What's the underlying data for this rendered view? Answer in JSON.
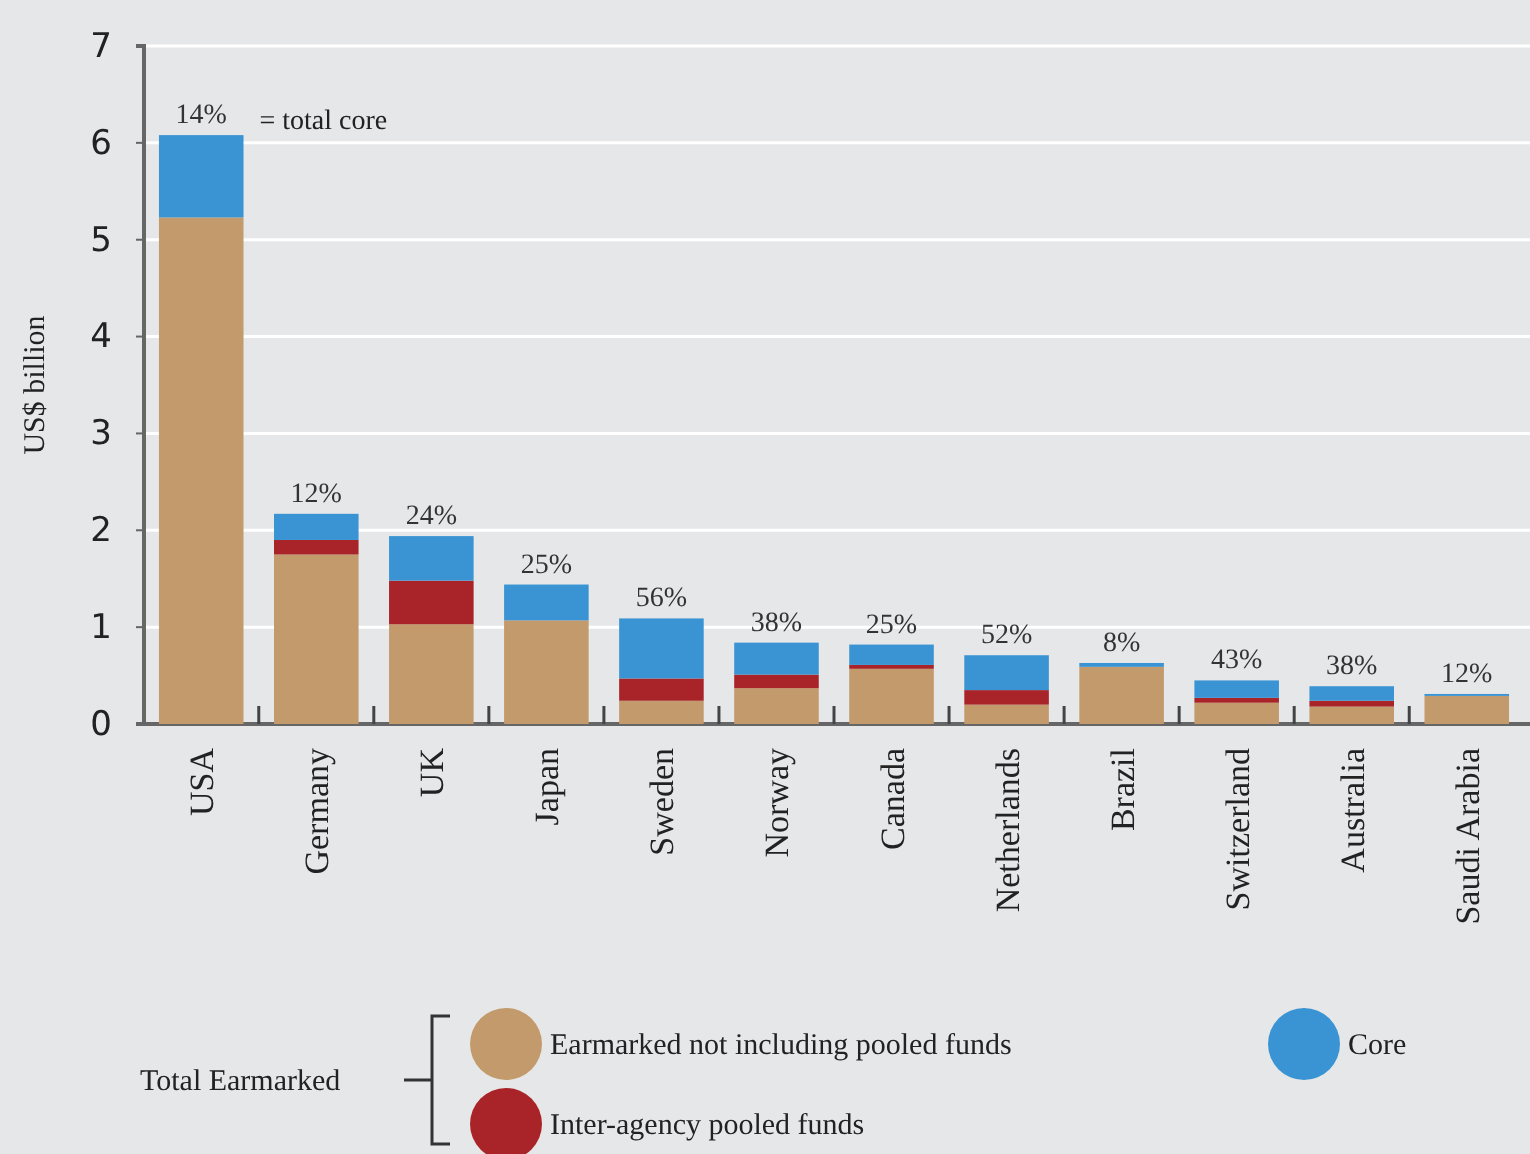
{
  "chart_data": {
    "type": "bar",
    "stacked": true,
    "ylabel": "US$ billion",
    "categories": [
      "USA",
      "Germany",
      "UK",
      "Japan",
      "Sweden",
      "Norway",
      "Canada",
      "Netherlands",
      "Brazil",
      "Switzerland",
      "Australia",
      "Saudi Arabia"
    ],
    "series": [
      {
        "name": "Earmarked not including pooled funds",
        "color": "#c39a6b",
        "values": [
          5.23,
          1.75,
          1.03,
          1.07,
          0.24,
          0.37,
          0.57,
          0.2,
          0.59,
          0.22,
          0.18,
          0.29
        ]
      },
      {
        "name": "Inter-agency pooled funds",
        "color": "#a92428",
        "values": [
          0,
          0.15,
          0.45,
          0,
          0.23,
          0.14,
          0.04,
          0.15,
          0,
          0.05,
          0.06,
          0
        ]
      },
      {
        "name": "Core",
        "color": "#3a94d3",
        "values": [
          0.85,
          0.27,
          0.46,
          0.37,
          0.62,
          0.33,
          0.21,
          0.36,
          0.04,
          0.18,
          0.15,
          0.02
        ]
      }
    ],
    "ylim": [
      0,
      7
    ],
    "yticks": [
      0,
      1,
      2,
      3,
      4,
      5,
      6,
      7
    ],
    "grid": "y",
    "legend": "bottom",
    "legend_title": "Total Earmarked",
    "annotations": [
      {
        "text": "14%",
        "x": "USA",
        "y": 6.08
      },
      {
        "text": "12%",
        "x": "Germany",
        "y": 2.17
      },
      {
        "text": "24%",
        "x": "UK",
        "y": 1.94
      },
      {
        "text": "25%",
        "x": "Japan",
        "y": 1.44
      },
      {
        "text": "56%",
        "x": "Sweden",
        "y": 1.09
      },
      {
        "text": "38%",
        "x": "Norway",
        "y": 0.84
      },
      {
        "text": "25%",
        "x": "Canada",
        "y": 0.82
      },
      {
        "text": "52%",
        "x": "Netherlands",
        "y": 0.71
      },
      {
        "text": "8%",
        "x": "Brazil",
        "y": 0.63
      },
      {
        "text": "43%",
        "x": "Switzerland",
        "y": 0.45
      },
      {
        "text": "38%",
        "x": "Australia",
        "y": 0.39
      },
      {
        "text": "12%",
        "x": "Saudi Arabia",
        "y": 0.31
      },
      "= total core"
    ]
  }
}
